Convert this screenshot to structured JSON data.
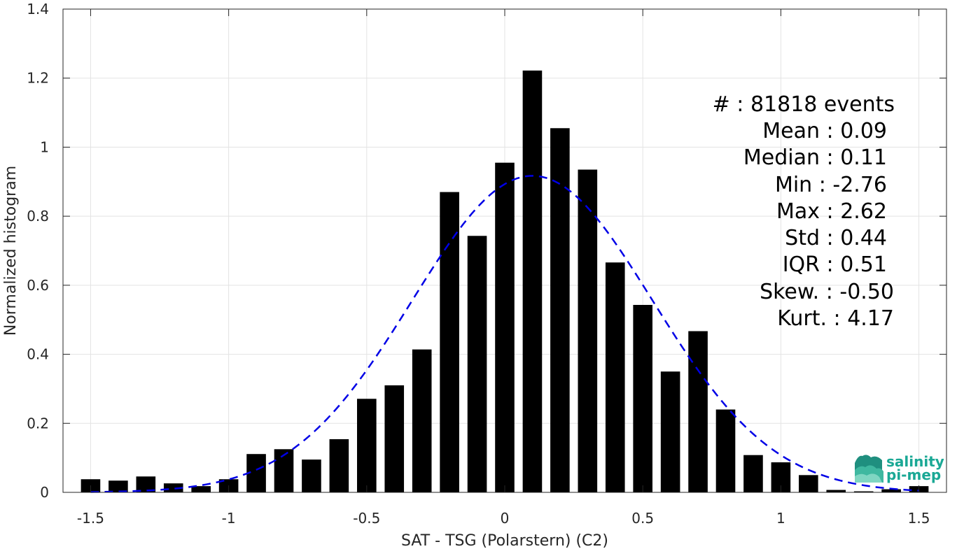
{
  "chart_data": {
    "type": "bar",
    "xlabel": "SAT - TSG (Polarstern) (C2)",
    "ylabel": "Normalized histogram",
    "xlim": [
      -1.6,
      1.6
    ],
    "ylim": [
      0,
      1.4
    ],
    "xticks": [
      -1.5,
      -1,
      -0.5,
      0,
      0.5,
      1,
      1.5
    ],
    "xtick_labels": [
      "-1.5",
      "-1",
      "-0.5",
      "0",
      "0.5",
      "1",
      "1.5"
    ],
    "yticks": [
      0,
      0.2,
      0.4,
      0.6,
      0.8,
      1,
      1.2,
      1.4
    ],
    "ytick_labels": [
      "0",
      "0.2",
      "0.4",
      "0.6",
      "0.8",
      "1",
      "1.2",
      "1.4"
    ],
    "grid": true,
    "bar_width": 0.07,
    "bars": {
      "x": [
        -1.5,
        -1.4,
        -1.3,
        -1.2,
        -1.1,
        -1.0,
        -0.9,
        -0.8,
        -0.7,
        -0.6,
        -0.5,
        -0.4,
        -0.3,
        -0.2,
        -0.1,
        0.0,
        0.1,
        0.2,
        0.3,
        0.4,
        0.5,
        0.6,
        0.7,
        0.8,
        0.9,
        1.0,
        1.1,
        1.2,
        1.3,
        1.4,
        1.5
      ],
      "values": [
        0.038,
        0.034,
        0.046,
        0.026,
        0.018,
        0.038,
        0.111,
        0.125,
        0.095,
        0.154,
        0.271,
        0.31,
        0.414,
        0.87,
        0.743,
        0.955,
        1.222,
        1.055,
        0.935,
        0.666,
        0.543,
        0.35,
        0.467,
        0.24,
        0.108,
        0.087,
        0.05,
        0.007,
        0.003,
        0.009,
        0.018
      ],
      "color": "#000000"
    },
    "fit_curve": {
      "style": "dashed",
      "color": "#0000e6",
      "mean": 0.1,
      "std": 0.435,
      "peak": 0.917,
      "x_range": [
        -1.5,
        1.5
      ]
    },
    "annotations": [
      "#  : 81818 events",
      "Mean : 0.09",
      "Median : 0.11",
      "Min : -2.76",
      "Max : 2.62",
      "Std : 0.44",
      "IQR : 0.51",
      "Skew. : -0.50",
      "Kurt. : 4.17"
    ],
    "logo": {
      "line1": "salinity",
      "line2": "pi-mep"
    }
  }
}
